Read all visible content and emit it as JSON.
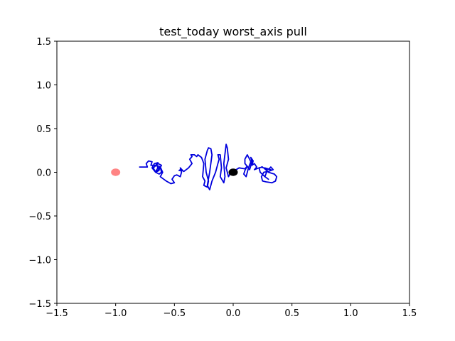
{
  "chart_data": {
    "type": "line",
    "title": "test_today worst_axis pull",
    "xlabel": "",
    "ylabel": "",
    "xlim": [
      -1.5,
      1.5
    ],
    "ylim": [
      -1.5,
      1.5
    ],
    "xticks": [
      -1.5,
      -1.0,
      -0.5,
      0.0,
      0.5,
      1.0,
      1.5
    ],
    "yticks": [
      -1.5,
      -1.0,
      -0.5,
      0.0,
      0.5,
      1.0,
      1.5
    ],
    "xtick_labels": [
      "−1.5",
      "−1.0",
      "−0.5",
      "0.0",
      "0.5",
      "1.0",
      "1.5"
    ],
    "ytick_labels": [
      "−1.5",
      "−1.0",
      "−0.5",
      "0.0",
      "0.5",
      "1.0",
      "1.5"
    ],
    "grid": false,
    "colors": {
      "path": "#0000dd",
      "target": "#ff6f6f",
      "current": "#000000"
    },
    "markers": [
      {
        "name": "target",
        "x": -1.0,
        "y": 0.0,
        "color": "#ff6f6f"
      },
      {
        "name": "current",
        "x": 0.0,
        "y": 0.0,
        "color": "#000000"
      }
    ],
    "series": [
      {
        "color": "#0000dd",
        "x": [
          -0.8,
          -0.75,
          -0.73,
          -0.74,
          -0.72,
          -0.69,
          -0.7,
          -0.66,
          -0.64,
          -0.67,
          -0.69,
          -0.66,
          -0.63,
          -0.65,
          -0.62,
          -0.61,
          -0.63,
          -0.66,
          -0.68,
          -0.64,
          -0.61,
          -0.63,
          -0.66,
          -0.64,
          -0.62,
          -0.6,
          -0.62,
          -0.57,
          -0.53,
          -0.5,
          -0.52,
          -0.5,
          -0.48,
          -0.45,
          -0.44,
          -0.45,
          -0.43,
          -0.46,
          -0.45,
          -0.42,
          -0.38,
          -0.35,
          -0.37,
          -0.35,
          -0.36,
          -0.33,
          -0.31,
          -0.3,
          -0.27,
          -0.25,
          -0.26,
          -0.24,
          -0.25,
          -0.22,
          -0.21,
          -0.23,
          -0.24,
          -0.22,
          -0.21,
          -0.19,
          -0.18,
          -0.2,
          -0.22,
          -0.2,
          -0.18,
          -0.15,
          -0.13,
          -0.12,
          -0.13,
          -0.11,
          -0.1,
          -0.11,
          -0.08,
          -0.07,
          -0.08,
          -0.06,
          -0.05,
          -0.04,
          -0.06,
          -0.04,
          -0.02,
          0.0,
          0.05,
          0.1,
          0.12,
          0.1,
          0.09,
          0.11,
          0.13,
          0.1,
          0.1,
          0.12,
          0.14,
          0.15,
          0.13,
          0.14,
          0.16,
          0.15,
          0.17,
          0.16,
          0.18,
          0.2,
          0.18,
          0.22,
          0.25,
          0.22,
          0.23,
          0.27,
          0.3,
          0.27,
          0.29,
          0.27,
          0.32,
          0.28,
          0.24,
          0.26,
          0.3,
          0.35,
          0.37,
          0.36,
          0.33,
          0.28,
          0.25,
          0.24,
          0.26,
          0.3,
          0.34,
          0.32,
          0.3
        ],
        "y": [
          0.06,
          0.06,
          0.06,
          0.1,
          0.13,
          0.12,
          0.08,
          0.08,
          0.11,
          0.1,
          0.05,
          0.0,
          0.02,
          0.08,
          0.06,
          0.0,
          -0.02,
          0.0,
          0.05,
          0.1,
          0.08,
          0.03,
          0.01,
          0.05,
          0.06,
          0.0,
          -0.05,
          -0.1,
          -0.13,
          -0.12,
          -0.08,
          -0.04,
          -0.03,
          -0.05,
          0.0,
          0.05,
          0.02,
          0.02,
          0.03,
          0.01,
          0.05,
          0.1,
          0.15,
          0.18,
          0.2,
          0.2,
          0.18,
          0.2,
          0.17,
          0.1,
          -0.05,
          -0.1,
          -0.15,
          -0.17,
          -0.1,
          0.0,
          0.15,
          0.25,
          0.28,
          0.27,
          0.2,
          0.0,
          -0.15,
          -0.2,
          -0.1,
          0.0,
          0.1,
          0.15,
          0.2,
          0.2,
          0.05,
          -0.05,
          -0.12,
          -0.05,
          0.1,
          0.32,
          0.28,
          0.15,
          0.05,
          -0.05,
          0.0,
          0.01,
          0.05,
          0.04,
          0.07,
          0.02,
          -0.02,
          -0.05,
          0.05,
          0.1,
          0.15,
          0.2,
          0.15,
          0.12,
          0.05,
          0.03,
          0.12,
          0.17,
          0.13,
          0.08,
          0.1,
          0.06,
          0.03,
          0.05,
          0.06,
          0.05,
          0.0,
          -0.05,
          -0.08,
          -0.05,
          0.02,
          0.05,
          0.03,
          0.04,
          0.06,
          0.05,
          0.0,
          -0.02,
          -0.05,
          -0.1,
          -0.12,
          -0.11,
          -0.1,
          -0.05,
          0.0,
          0.01,
          0.03,
          0.06,
          0.03
        ]
      }
    ]
  }
}
